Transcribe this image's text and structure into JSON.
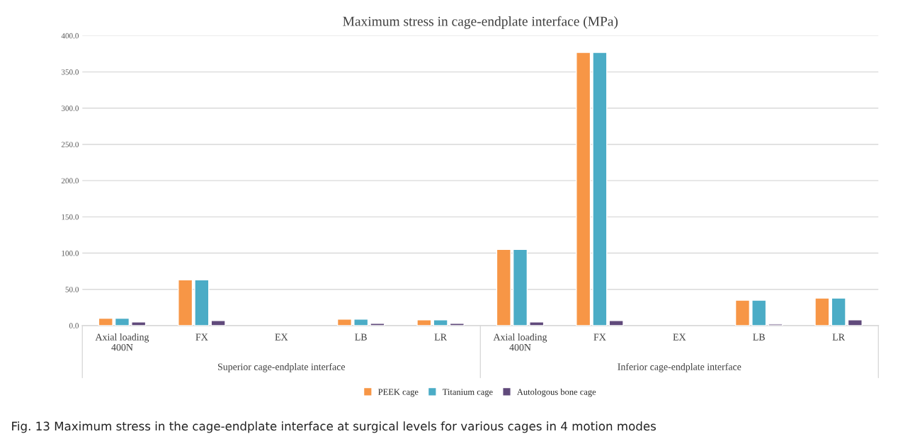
{
  "chart_data": {
    "type": "bar",
    "title": "Maximum stress in cage-endplate interface (MPa)",
    "categories": [
      "Axial loading\n400N",
      "FX",
      "EX",
      "LB",
      "LR",
      "Axial loading\n400N",
      "FX",
      "EX",
      "LB",
      "LR"
    ],
    "series": [
      {
        "name": "PEEK cage",
        "color": "#f79646",
        "values": [
          10,
          63,
          null,
          9,
          8,
          105,
          377,
          null,
          35,
          38
        ]
      },
      {
        "name": "Titanium cage",
        "color": "#4bacc6",
        "values": [
          10,
          63,
          null,
          9,
          8,
          105,
          377,
          null,
          35,
          38
        ]
      },
      {
        "name": "Autologous bone cage",
        "color": "#604a7b",
        "values": [
          5,
          7,
          null,
          3,
          3,
          5,
          7,
          null,
          2,
          8
        ]
      }
    ],
    "ylim": [
      0,
      400
    ],
    "yticks": [
      {
        "value": 0,
        "label": "0.0"
      },
      {
        "value": 50,
        "label": "50.0"
      },
      {
        "value": 100,
        "label": "100.0"
      },
      {
        "value": 150,
        "label": "150.0"
      },
      {
        "value": 200,
        "label": "200.0"
      },
      {
        "value": 250,
        "label": "250.0"
      },
      {
        "value": 300,
        "label": "300.0"
      },
      {
        "value": 350,
        "label": "350.0"
      },
      {
        "value": 400,
        "label": "400.0"
      }
    ],
    "grid": "y",
    "legend": "bottom",
    "annotations": [
      "Superior cage-endplate interface",
      "Inferior cage-endplate interface",
      "Fig. 13 Maximum stress in the cage-endplate interface at surgical levels for various cages in 4 motion modes"
    ]
  }
}
